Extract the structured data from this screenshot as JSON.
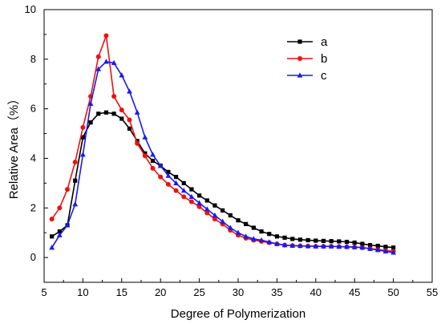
{
  "chart_data": {
    "type": "line",
    "xlabel": "Degree of Polymerization",
    "ylabel": "Relative Area（%）",
    "xlim": [
      5,
      55
    ],
    "ylim": [
      -1,
      10
    ],
    "xticks": [
      5,
      10,
      15,
      20,
      25,
      30,
      35,
      40,
      45,
      50,
      55
    ],
    "yticks": [
      0,
      2,
      4,
      6,
      8,
      10
    ],
    "grid": false,
    "legend_position": "top-right",
    "x": [
      6,
      7,
      8,
      9,
      10,
      11,
      12,
      13,
      14,
      15,
      16,
      17,
      18,
      19,
      20,
      21,
      22,
      23,
      24,
      25,
      26,
      27,
      28,
      29,
      30,
      31,
      32,
      33,
      34,
      35,
      36,
      37,
      38,
      39,
      40,
      41,
      42,
      43,
      44,
      45,
      46,
      47,
      48,
      49,
      50
    ],
    "series": [
      {
        "name": "a",
        "color": "#000000",
        "marker": "square",
        "values": [
          0.85,
          1.05,
          1.3,
          3.1,
          4.85,
          5.45,
          5.8,
          5.85,
          5.8,
          5.6,
          5.2,
          4.7,
          4.2,
          3.9,
          3.7,
          3.45,
          3.25,
          3.0,
          2.75,
          2.5,
          2.3,
          2.1,
          1.9,
          1.7,
          1.5,
          1.35,
          1.2,
          1.05,
          0.95,
          0.85,
          0.8,
          0.75,
          0.72,
          0.7,
          0.68,
          0.67,
          0.66,
          0.65,
          0.63,
          0.6,
          0.55,
          0.5,
          0.47,
          0.43,
          0.4
        ]
      },
      {
        "name": "b",
        "color": "#ee1111",
        "marker": "circle",
        "values": [
          1.55,
          2.0,
          2.75,
          3.85,
          5.25,
          6.5,
          8.1,
          8.95,
          6.5,
          5.95,
          5.55,
          4.6,
          4.1,
          3.6,
          3.25,
          2.95,
          2.7,
          2.45,
          2.25,
          2.05,
          1.8,
          1.55,
          1.35,
          1.1,
          0.9,
          0.78,
          0.7,
          0.65,
          0.6,
          0.55,
          0.5,
          0.48,
          0.47,
          0.46,
          0.45,
          0.45,
          0.45,
          0.44,
          0.43,
          0.42,
          0.4,
          0.36,
          0.32,
          0.28,
          0.25
        ]
      },
      {
        "name": "c",
        "color": "#1a1aee",
        "marker": "triangle",
        "values": [
          0.4,
          0.9,
          1.3,
          2.15,
          4.15,
          6.2,
          7.6,
          7.9,
          7.85,
          7.35,
          6.7,
          5.85,
          4.85,
          4.15,
          3.7,
          3.3,
          3.0,
          2.7,
          2.45,
          2.2,
          1.95,
          1.7,
          1.45,
          1.2,
          1.0,
          0.85,
          0.75,
          0.7,
          0.62,
          0.55,
          0.5,
          0.48,
          0.47,
          0.46,
          0.45,
          0.45,
          0.45,
          0.44,
          0.43,
          0.42,
          0.4,
          0.35,
          0.3,
          0.25,
          0.2
        ]
      }
    ]
  }
}
